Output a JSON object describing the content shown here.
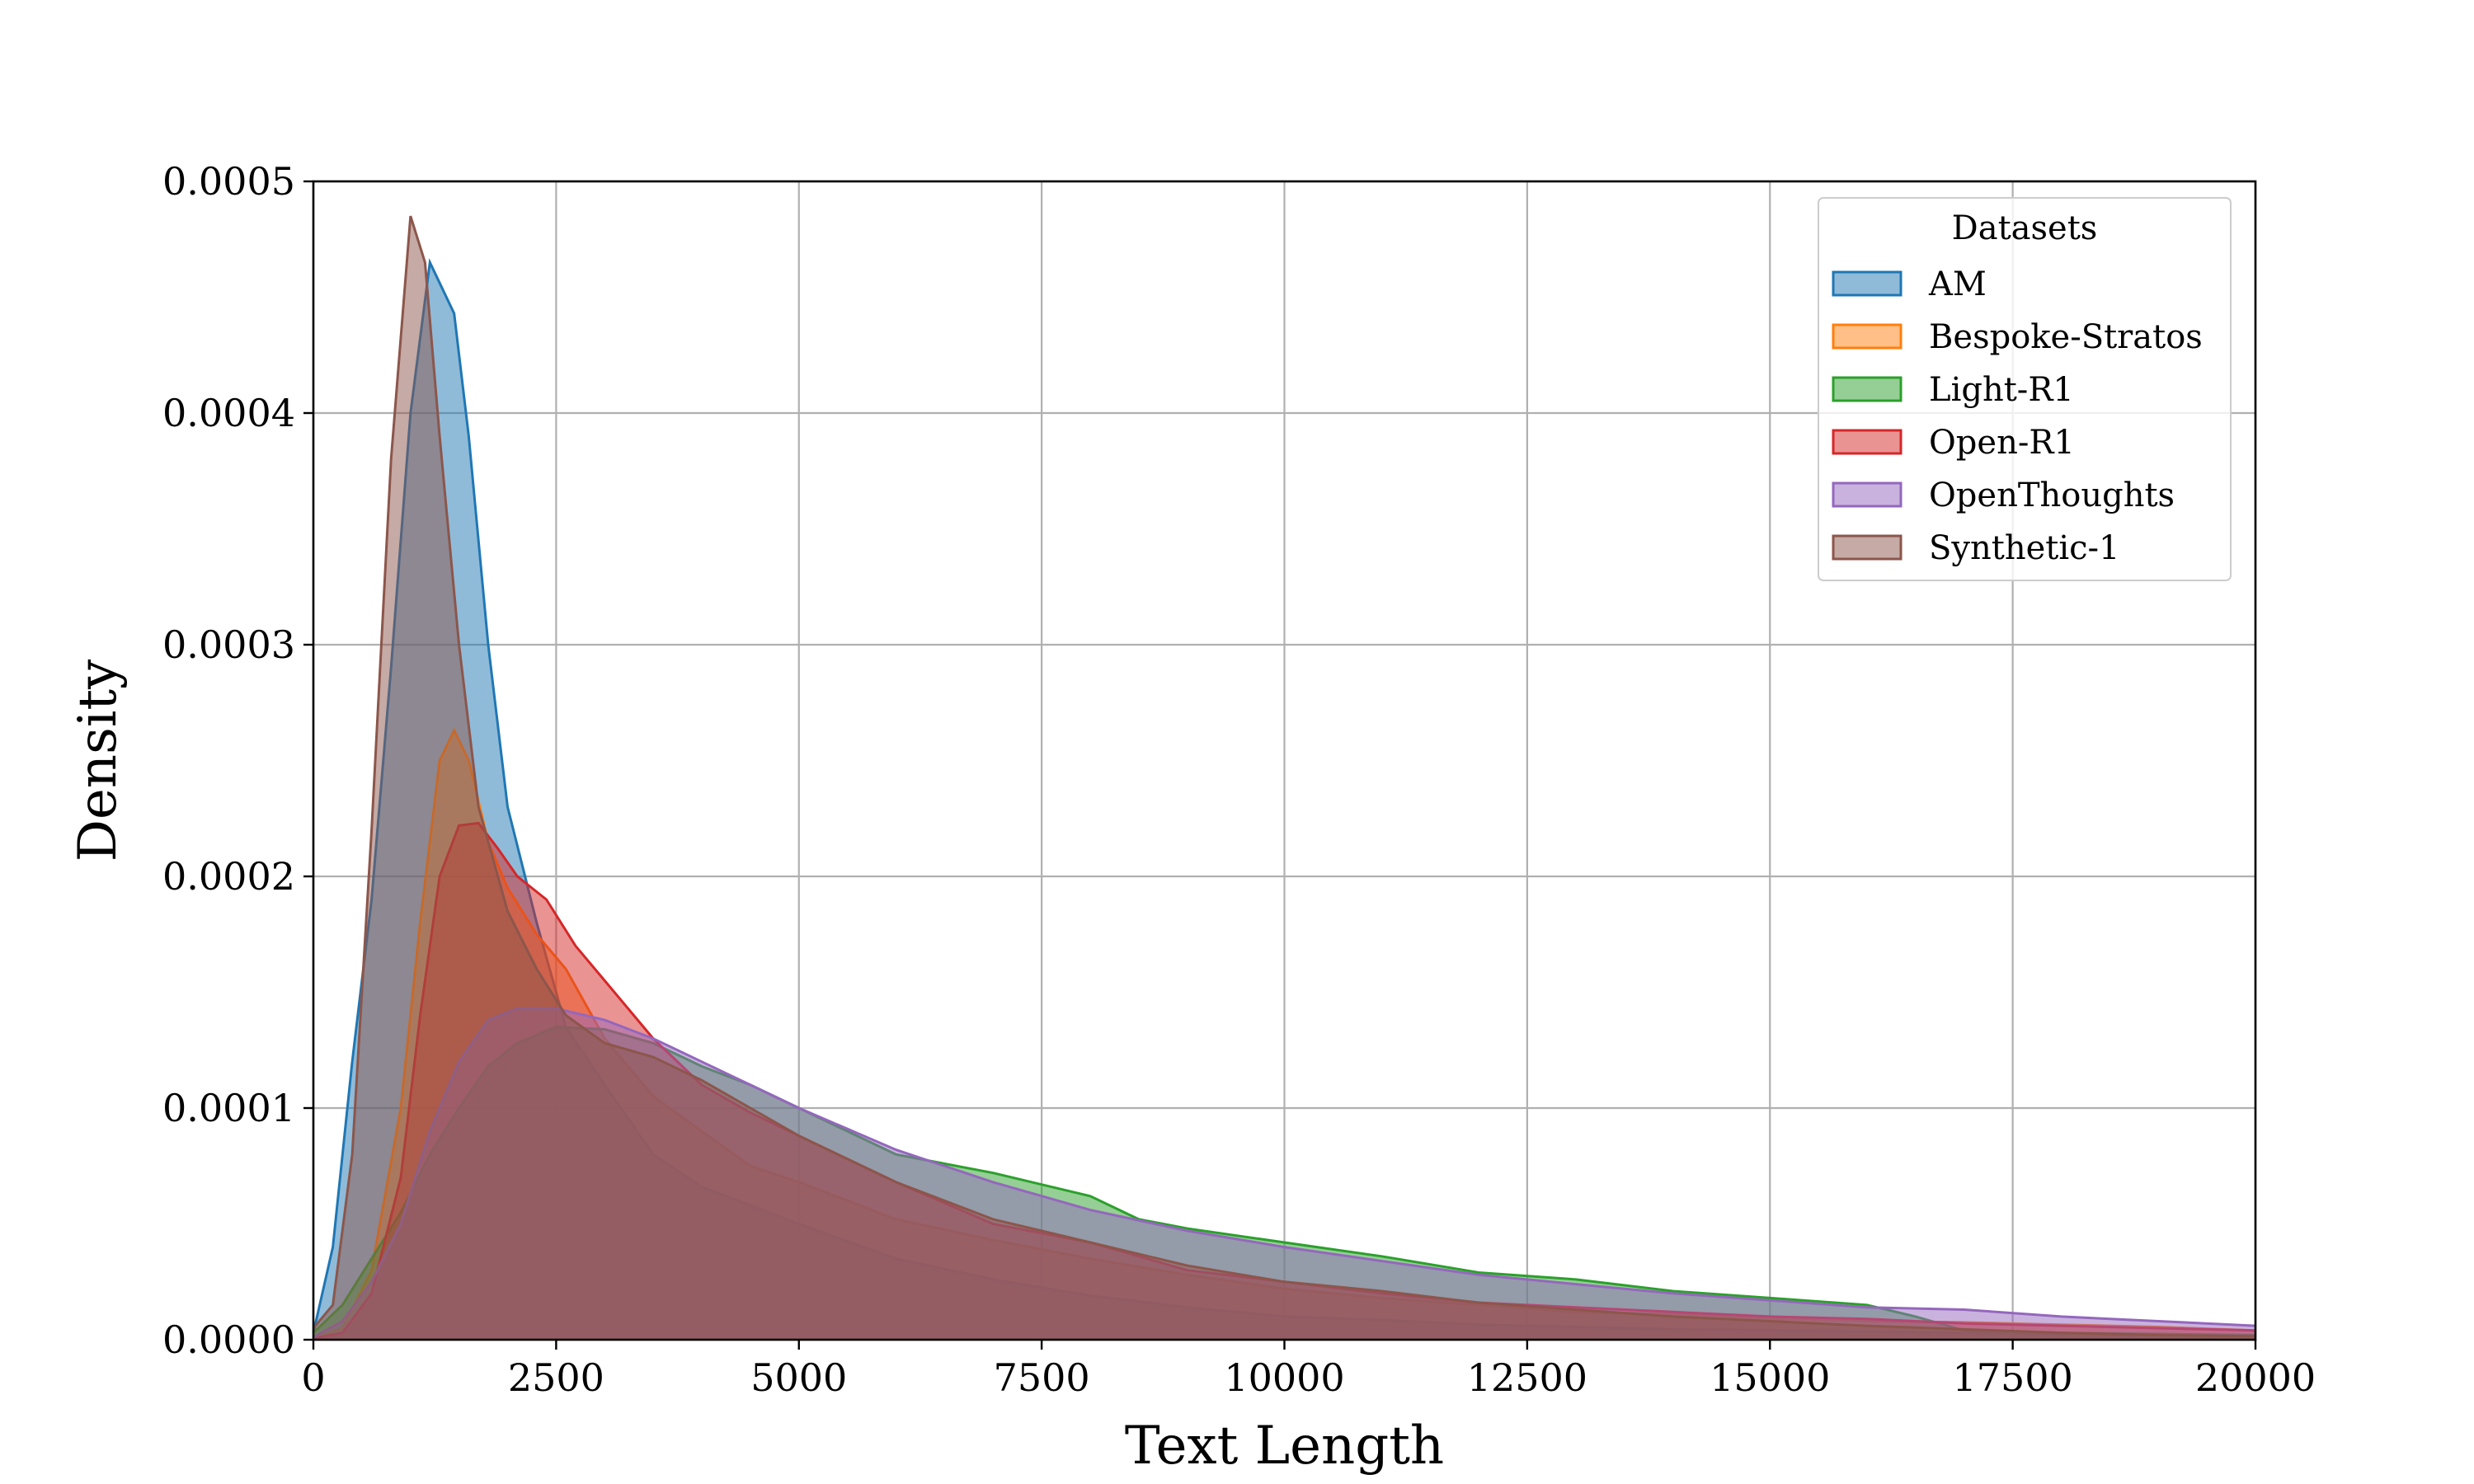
{
  "chart_data": {
    "type": "area",
    "title": "",
    "xlabel": "Text Length",
    "ylabel": "Density",
    "xlim": [
      0,
      20000
    ],
    "ylim": [
      0,
      0.0005
    ],
    "xticks": [
      0,
      2500,
      5000,
      7500,
      10000,
      12500,
      15000,
      17500,
      20000
    ],
    "xtick_labels": [
      "0",
      "2500",
      "5000",
      "7500",
      "10000",
      "12500",
      "15000",
      "17500",
      "20000"
    ],
    "yticks": [
      0,
      0.0001,
      0.0002,
      0.0003,
      0.0004,
      0.0005
    ],
    "ytick_labels": [
      "0.0000",
      "0.0001",
      "0.0002",
      "0.0003",
      "0.0004",
      "0.0005"
    ],
    "grid": true,
    "legend": {
      "title": "Datasets",
      "placement": "top-right"
    },
    "fill_opacity": 0.5,
    "series": [
      {
        "name": "AM",
        "color": "#1f77b4",
        "points": [
          [
            0,
            3e-06
          ],
          [
            200,
            4e-05
          ],
          [
            400,
            0.00012
          ],
          [
            600,
            0.00019
          ],
          [
            800,
            0.00029
          ],
          [
            1000,
            0.0004
          ],
          [
            1200,
            0.000465
          ],
          [
            1450,
            0.000443
          ],
          [
            1600,
            0.00039
          ],
          [
            1800,
            0.0003
          ],
          [
            2000,
            0.00023
          ],
          [
            2300,
            0.00018
          ],
          [
            2600,
            0.000135
          ],
          [
            3000,
            0.00011
          ],
          [
            3500,
            8e-05
          ],
          [
            4000,
            6.6e-05
          ],
          [
            5000,
            5e-05
          ],
          [
            6000,
            3.5e-05
          ],
          [
            7000,
            2.6e-05
          ],
          [
            8000,
            1.9e-05
          ],
          [
            9000,
            1.4e-05
          ],
          [
            10000,
            1e-05
          ],
          [
            11000,
            8.5e-06
          ],
          [
            12000,
            6.5e-06
          ],
          [
            13000,
            5.5e-06
          ],
          [
            14000,
            4.5e-06
          ],
          [
            15000,
            4e-06
          ],
          [
            16000,
            3.5e-06
          ],
          [
            17000,
            3e-06
          ],
          [
            18000,
            2.5e-06
          ],
          [
            19000,
            2e-06
          ],
          [
            20000,
            1.8e-06
          ]
        ]
      },
      {
        "name": "Bespoke-Stratos",
        "color": "#ff7f0e",
        "points": [
          [
            0,
            5e-07
          ],
          [
            300,
            5e-06
          ],
          [
            600,
            3e-05
          ],
          [
            900,
            0.0001
          ],
          [
            1100,
            0.00018
          ],
          [
            1300,
            0.00025
          ],
          [
            1450,
            0.000263
          ],
          [
            1600,
            0.00025
          ],
          [
            1800,
            0.000215
          ],
          [
            2000,
            0.000195
          ],
          [
            2300,
            0.000175
          ],
          [
            2600,
            0.00016
          ],
          [
            3000,
            0.00013
          ],
          [
            3500,
            0.000105
          ],
          [
            4000,
            9e-05
          ],
          [
            4500,
            7.5e-05
          ],
          [
            5000,
            6.8e-05
          ],
          [
            6000,
            5.2e-05
          ],
          [
            7000,
            4.3e-05
          ],
          [
            8000,
            3.5e-05
          ],
          [
            9000,
            2.8e-05
          ],
          [
            10000,
            2.2e-05
          ],
          [
            11000,
            1.8e-05
          ],
          [
            12000,
            1.5e-05
          ],
          [
            13000,
            1.2e-05
          ],
          [
            14000,
            1.1e-05
          ],
          [
            15000,
            9e-06
          ],
          [
            16000,
            8e-06
          ],
          [
            17000,
            7.5e-06
          ],
          [
            18000,
            6.5e-06
          ],
          [
            19000,
            5.5e-06
          ],
          [
            20000,
            4e-06
          ]
        ]
      },
      {
        "name": "Light-R1",
        "color": "#2ca02c",
        "points": [
          [
            0,
            3e-06
          ],
          [
            300,
            1.5e-05
          ],
          [
            600,
            3.5e-05
          ],
          [
            900,
            5.5e-05
          ],
          [
            1200,
            8e-05
          ],
          [
            1500,
            0.0001
          ],
          [
            1800,
            0.000118
          ],
          [
            2100,
            0.000128
          ],
          [
            2500,
            0.000135
          ],
          [
            3000,
            0.000134
          ],
          [
            3500,
            0.000128
          ],
          [
            4000,
            0.000118
          ],
          [
            4500,
            0.00011
          ],
          [
            5000,
            0.0001
          ],
          [
            5500,
            9e-05
          ],
          [
            6000,
            8e-05
          ],
          [
            7000,
            7.2e-05
          ],
          [
            8000,
            6.2e-05
          ],
          [
            8500,
            5.2e-05
          ],
          [
            9000,
            4.8e-05
          ],
          [
            10000,
            4.2e-05
          ],
          [
            11000,
            3.6e-05
          ],
          [
            12000,
            2.9e-05
          ],
          [
            13000,
            2.6e-05
          ],
          [
            14000,
            2.1e-05
          ],
          [
            15000,
            1.8e-05
          ],
          [
            16000,
            1.5e-05
          ],
          [
            16500,
            1e-05
          ],
          [
            17000,
            4e-06
          ],
          [
            18000,
            3e-06
          ],
          [
            19000,
            2.5e-06
          ],
          [
            20000,
            2e-06
          ]
        ]
      },
      {
        "name": "Open-R1",
        "color": "#d62728",
        "points": [
          [
            0,
            5e-07
          ],
          [
            300,
            3e-06
          ],
          [
            600,
            2e-05
          ],
          [
            900,
            7e-05
          ],
          [
            1100,
            0.00014
          ],
          [
            1300,
            0.0002
          ],
          [
            1500,
            0.000222
          ],
          [
            1700,
            0.000223
          ],
          [
            1900,
            0.000212
          ],
          [
            2100,
            0.0002
          ],
          [
            2400,
            0.00019
          ],
          [
            2700,
            0.00017
          ],
          [
            3000,
            0.000155
          ],
          [
            3500,
            0.00013
          ],
          [
            4000,
            0.00011
          ],
          [
            4500,
            9.8e-05
          ],
          [
            5000,
            8.8e-05
          ],
          [
            6000,
            6.8e-05
          ],
          [
            7000,
            5e-05
          ],
          [
            8000,
            4.2e-05
          ],
          [
            9000,
            3e-05
          ],
          [
            10000,
            2.5e-05
          ],
          [
            11000,
            2e-05
          ],
          [
            12000,
            1.6e-05
          ],
          [
            13000,
            1.4e-05
          ],
          [
            14000,
            1.2e-05
          ],
          [
            15000,
            1e-05
          ],
          [
            16000,
            9e-06
          ],
          [
            17000,
            7e-06
          ],
          [
            18000,
            6e-06
          ],
          [
            19000,
            5e-06
          ],
          [
            20000,
            4e-06
          ]
        ]
      },
      {
        "name": "OpenThoughts",
        "color": "#9467bd",
        "points": [
          [
            0,
            1e-06
          ],
          [
            300,
            8e-06
          ],
          [
            600,
            2.5e-05
          ],
          [
            900,
            5e-05
          ],
          [
            1200,
            9e-05
          ],
          [
            1500,
            0.00012
          ],
          [
            1800,
            0.000138
          ],
          [
            2100,
            0.000143
          ],
          [
            2500,
            0.000143
          ],
          [
            3000,
            0.000138
          ],
          [
            3500,
            0.00013
          ],
          [
            4000,
            0.00012
          ],
          [
            4500,
            0.00011
          ],
          [
            5000,
            0.0001
          ],
          [
            6000,
            8.2e-05
          ],
          [
            7000,
            6.8e-05
          ],
          [
            8000,
            5.6e-05
          ],
          [
            9000,
            4.7e-05
          ],
          [
            10000,
            4e-05
          ],
          [
            11000,
            3.4e-05
          ],
          [
            12000,
            2.8e-05
          ],
          [
            13000,
            2.4e-05
          ],
          [
            14000,
            2e-05
          ],
          [
            15000,
            1.7e-05
          ],
          [
            16000,
            1.4e-05
          ],
          [
            17000,
            1.3e-05
          ],
          [
            18000,
            1e-05
          ],
          [
            19000,
            8e-06
          ],
          [
            20000,
            6e-06
          ]
        ]
      },
      {
        "name": "Synthetic-1",
        "color": "#8c564b",
        "points": [
          [
            0,
            5e-06
          ],
          [
            200,
            1.5e-05
          ],
          [
            400,
            8e-05
          ],
          [
            600,
            0.00022
          ],
          [
            800,
            0.00038
          ],
          [
            1000,
            0.000485
          ],
          [
            1150,
            0.000465
          ],
          [
            1300,
            0.00039
          ],
          [
            1500,
            0.0003
          ],
          [
            1700,
            0.00023
          ],
          [
            2000,
            0.000185
          ],
          [
            2300,
            0.00016
          ],
          [
            2600,
            0.00014
          ],
          [
            3000,
            0.000128
          ],
          [
            3500,
            0.000122
          ],
          [
            4000,
            0.000112
          ],
          [
            4500,
            0.0001
          ],
          [
            5000,
            8.8e-05
          ],
          [
            6000,
            6.8e-05
          ],
          [
            7000,
            5.2e-05
          ],
          [
            8000,
            4.2e-05
          ],
          [
            9000,
            3.2e-05
          ],
          [
            10000,
            2.5e-05
          ],
          [
            11000,
            2.1e-05
          ],
          [
            12000,
            1.6e-05
          ],
          [
            13000,
            1.3e-05
          ],
          [
            14000,
            1e-05
          ],
          [
            15000,
            8e-06
          ],
          [
            16000,
            6e-06
          ],
          [
            17000,
            4.5e-06
          ],
          [
            18000,
            3e-06
          ],
          [
            19000,
            2e-06
          ],
          [
            20000,
            1.5e-06
          ]
        ]
      }
    ]
  }
}
